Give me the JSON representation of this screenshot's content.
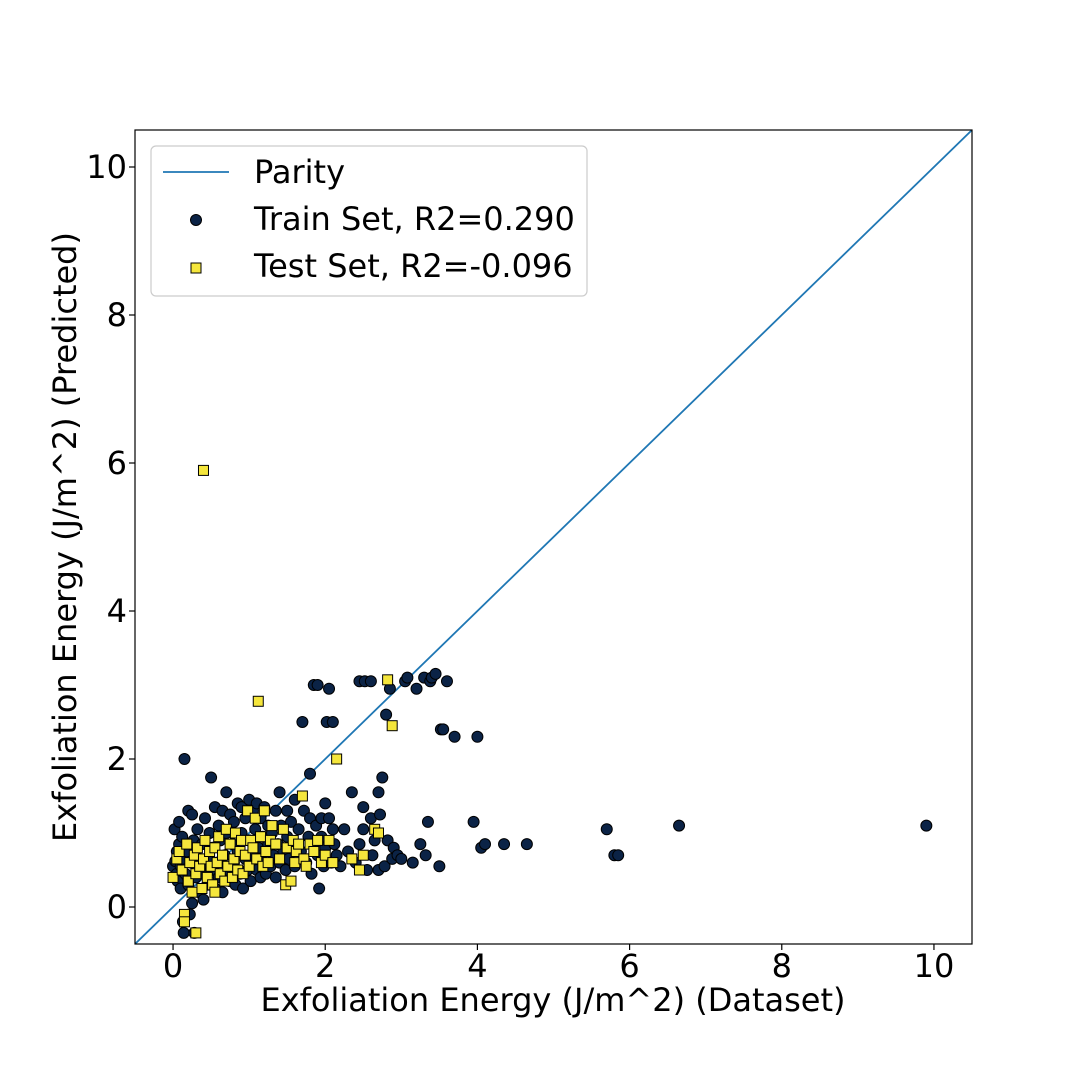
{
  "chart_data": {
    "type": "scatter",
    "xlabel": "Exfoliation Energy (J/m^2) (Dataset)",
    "ylabel": "Exfoliation Energy (J/m^2) (Predicted)",
    "xlim": [
      -0.5,
      10.5
    ],
    "ylim": [
      -0.5,
      10.5
    ],
    "xticks": [
      0,
      2,
      4,
      6,
      8,
      10
    ],
    "yticks": [
      0,
      2,
      4,
      6,
      8,
      10
    ],
    "tick_labels_x": [
      "0",
      "2",
      "4",
      "6",
      "8",
      "10"
    ],
    "tick_labels_y": [
      "0",
      "2",
      "4",
      "6",
      "8",
      "10"
    ],
    "grid": false,
    "legend_position": "top-left",
    "parity": {
      "name": "Parity",
      "color": "#1f77b4",
      "points": [
        [
          -0.5,
          -0.5
        ],
        [
          10.5,
          10.5
        ]
      ]
    },
    "series": [
      {
        "name": "Train Set, R2=0.290",
        "marker": "circle",
        "color": "#0b2346",
        "points": [
          [
            0.0,
            0.55
          ],
          [
            0.02,
            1.05
          ],
          [
            0.03,
            0.62
          ],
          [
            0.05,
            0.75
          ],
          [
            0.05,
            0.45
          ],
          [
            0.06,
            0.35
          ],
          [
            0.08,
            0.85
          ],
          [
            0.08,
            1.15
          ],
          [
            0.1,
            0.55
          ],
          [
            0.1,
            0.25
          ],
          [
            0.12,
            0.95
          ],
          [
            0.12,
            0.65
          ],
          [
            0.13,
            -0.2
          ],
          [
            0.14,
            -0.35
          ],
          [
            0.15,
            2.0
          ],
          [
            0.16,
            0.45
          ],
          [
            0.18,
            0.75
          ],
          [
            0.2,
            1.3
          ],
          [
            0.2,
            0.3
          ],
          [
            0.22,
            -0.1
          ],
          [
            0.24,
            0.6
          ],
          [
            0.25,
            1.25
          ],
          [
            0.25,
            0.05
          ],
          [
            0.27,
            0.9
          ],
          [
            0.28,
            -0.35
          ],
          [
            0.3,
            0.4
          ],
          [
            0.3,
            0.7
          ],
          [
            0.32,
            1.05
          ],
          [
            0.35,
            0.2
          ],
          [
            0.36,
            0.55
          ],
          [
            0.38,
            0.85
          ],
          [
            0.4,
            0.1
          ],
          [
            0.4,
            0.45
          ],
          [
            0.42,
            1.2
          ],
          [
            0.45,
            0.3
          ],
          [
            0.45,
            0.65
          ],
          [
            0.48,
            1.0
          ],
          [
            0.5,
            1.75
          ],
          [
            0.5,
            0.5
          ],
          [
            0.52,
            0.8
          ],
          [
            0.55,
            1.35
          ],
          [
            0.55,
            0.25
          ],
          [
            0.58,
            0.6
          ],
          [
            0.6,
            1.1
          ],
          [
            0.6,
            0.4
          ],
          [
            0.62,
            0.9
          ],
          [
            0.65,
            1.3
          ],
          [
            0.65,
            0.2
          ],
          [
            0.68,
            0.7
          ],
          [
            0.7,
            1.0
          ],
          [
            0.7,
            1.55
          ],
          [
            0.72,
            0.5
          ],
          [
            0.75,
            1.25
          ],
          [
            0.75,
            0.35
          ],
          [
            0.78,
            0.85
          ],
          [
            0.8,
            0.6
          ],
          [
            0.8,
            1.15
          ],
          [
            0.82,
            0.3
          ],
          [
            0.85,
            1.4
          ],
          [
            0.85,
            0.75
          ],
          [
            0.88,
            0.45
          ],
          [
            0.9,
            1.0
          ],
          [
            0.9,
            1.35
          ],
          [
            0.92,
            0.25
          ],
          [
            0.95,
            0.65
          ],
          [
            0.95,
            1.2
          ],
          [
            0.98,
            0.5
          ],
          [
            1.0,
            0.9
          ],
          [
            1.0,
            1.45
          ],
          [
            1.02,
            0.35
          ],
          [
            1.05,
            0.7
          ],
          [
            1.05,
            1.3
          ],
          [
            1.08,
            1.05
          ],
          [
            1.1,
            0.5
          ],
          [
            1.1,
            1.4
          ],
          [
            1.12,
            0.8
          ],
          [
            1.15,
            1.2
          ],
          [
            1.15,
            0.4
          ],
          [
            1.18,
            0.95
          ],
          [
            1.2,
            0.6
          ],
          [
            1.2,
            1.35
          ],
          [
            1.22,
            0.45
          ],
          [
            1.25,
            0.85
          ],
          [
            1.25,
            1.1
          ],
          [
            1.28,
            0.55
          ],
          [
            1.3,
            1.0
          ],
          [
            1.32,
            0.7
          ],
          [
            1.35,
            0.4
          ],
          [
            1.35,
            1.3
          ],
          [
            1.38,
            0.85
          ],
          [
            1.4,
            1.55
          ],
          [
            1.4,
            0.6
          ],
          [
            1.42,
            1.1
          ],
          [
            1.45,
            0.75
          ],
          [
            1.48,
            0.5
          ],
          [
            1.5,
            0.95
          ],
          [
            1.5,
            1.3
          ],
          [
            1.52,
            0.65
          ],
          [
            1.55,
            1.15
          ],
          [
            1.58,
            0.85
          ],
          [
            1.6,
            1.45
          ],
          [
            1.6,
            0.55
          ],
          [
            1.65,
            1.05
          ],
          [
            1.68,
            0.75
          ],
          [
            1.7,
            2.5
          ],
          [
            1.72,
            1.3
          ],
          [
            1.75,
            0.6
          ],
          [
            1.78,
            0.95
          ],
          [
            1.8,
            1.8
          ],
          [
            1.8,
            1.2
          ],
          [
            1.82,
            0.45
          ],
          [
            1.85,
            3.0
          ],
          [
            1.85,
            0.85
          ],
          [
            1.88,
            1.1
          ],
          [
            1.9,
            3.0
          ],
          [
            1.9,
            0.7
          ],
          [
            1.92,
            0.25
          ],
          [
            1.95,
            1.2
          ],
          [
            1.95,
            0.95
          ],
          [
            1.98,
            0.55
          ],
          [
            2.0,
            1.4
          ],
          [
            2.0,
            0.8
          ],
          [
            2.02,
            2.5
          ],
          [
            2.05,
            2.95
          ],
          [
            2.05,
            1.2
          ],
          [
            2.08,
            0.6
          ],
          [
            2.1,
            2.5
          ],
          [
            2.1,
            1.05
          ],
          [
            2.12,
            0.85
          ],
          [
            2.15,
            0.7
          ],
          [
            2.2,
            0.55
          ],
          [
            2.25,
            1.05
          ],
          [
            2.3,
            0.75
          ],
          [
            2.35,
            1.55
          ],
          [
            2.4,
            0.6
          ],
          [
            2.45,
            0.85
          ],
          [
            2.45,
            3.05
          ],
          [
            2.5,
            1.35
          ],
          [
            2.5,
            1.05
          ],
          [
            2.52,
            3.05
          ],
          [
            2.55,
            0.5
          ],
          [
            2.6,
            3.05
          ],
          [
            2.6,
            1.2
          ],
          [
            2.62,
            0.7
          ],
          [
            2.65,
            0.9
          ],
          [
            2.7,
            1.55
          ],
          [
            2.7,
            0.5
          ],
          [
            2.72,
            1.25
          ],
          [
            2.75,
            1.75
          ],
          [
            2.78,
            0.55
          ],
          [
            2.8,
            2.6
          ],
          [
            2.82,
            0.9
          ],
          [
            2.85,
            2.95
          ],
          [
            2.88,
            0.65
          ],
          [
            2.9,
            0.8
          ],
          [
            2.95,
            0.7
          ],
          [
            3.0,
            0.65
          ],
          [
            3.05,
            3.05
          ],
          [
            3.08,
            3.1
          ],
          [
            3.15,
            0.6
          ],
          [
            3.2,
            2.95
          ],
          [
            3.25,
            0.85
          ],
          [
            3.3,
            3.1
          ],
          [
            3.32,
            0.7
          ],
          [
            3.35,
            1.15
          ],
          [
            3.38,
            3.05
          ],
          [
            3.4,
            3.1
          ],
          [
            3.45,
            3.15
          ],
          [
            3.5,
            0.55
          ],
          [
            3.52,
            2.4
          ],
          [
            3.55,
            2.4
          ],
          [
            3.6,
            3.05
          ],
          [
            3.7,
            2.3
          ],
          [
            3.95,
            1.15
          ],
          [
            4.0,
            2.3
          ],
          [
            4.05,
            0.8
          ],
          [
            4.1,
            0.85
          ],
          [
            4.35,
            0.85
          ],
          [
            4.65,
            0.85
          ],
          [
            5.7,
            1.05
          ],
          [
            5.8,
            0.7
          ],
          [
            5.85,
            0.7
          ],
          [
            6.65,
            1.1
          ],
          [
            9.9,
            1.1
          ]
        ]
      },
      {
        "name": "Test Set, R2=-0.096",
        "marker": "square",
        "color": "#f5e63c",
        "points": [
          [
            0.0,
            0.4
          ],
          [
            0.05,
            0.65
          ],
          [
            0.08,
            0.75
          ],
          [
            0.12,
            0.5
          ],
          [
            0.15,
            -0.1
          ],
          [
            0.15,
            -0.2
          ],
          [
            0.18,
            0.85
          ],
          [
            0.2,
            0.35
          ],
          [
            0.22,
            0.6
          ],
          [
            0.25,
            0.2
          ],
          [
            0.28,
            0.7
          ],
          [
            0.3,
            -0.35
          ],
          [
            0.3,
            0.45
          ],
          [
            0.32,
            0.8
          ],
          [
            0.35,
            0.55
          ],
          [
            0.38,
            0.25
          ],
          [
            0.4,
            5.9
          ],
          [
            0.4,
            0.65
          ],
          [
            0.42,
            0.9
          ],
          [
            0.45,
            0.4
          ],
          [
            0.48,
            0.75
          ],
          [
            0.5,
            0.55
          ],
          [
            0.52,
            0.3
          ],
          [
            0.55,
            0.8
          ],
          [
            0.55,
            0.2
          ],
          [
            0.58,
            0.6
          ],
          [
            0.6,
            0.95
          ],
          [
            0.62,
            0.45
          ],
          [
            0.65,
            0.7
          ],
          [
            0.68,
            0.35
          ],
          [
            0.7,
            1.05
          ],
          [
            0.72,
            0.55
          ],
          [
            0.75,
            0.85
          ],
          [
            0.78,
            0.4
          ],
          [
            0.8,
            0.65
          ],
          [
            0.82,
            1.0
          ],
          [
            0.85,
            0.5
          ],
          [
            0.88,
            0.75
          ],
          [
            0.9,
            0.9
          ],
          [
            0.92,
            0.45
          ],
          [
            0.95,
            0.7
          ],
          [
            0.98,
            1.3
          ],
          [
            1.0,
            0.55
          ],
          [
            1.02,
            0.9
          ],
          [
            1.05,
            0.8
          ],
          [
            1.08,
            1.2
          ],
          [
            1.1,
            0.65
          ],
          [
            1.12,
            2.78
          ],
          [
            1.15,
            0.95
          ],
          [
            1.18,
            0.55
          ],
          [
            1.2,
            1.3
          ],
          [
            1.22,
            0.75
          ],
          [
            1.25,
            0.6
          ],
          [
            1.28,
            0.9
          ],
          [
            1.3,
            1.1
          ],
          [
            1.35,
            0.85
          ],
          [
            1.4,
            0.65
          ],
          [
            1.45,
            1.05
          ],
          [
            1.48,
            0.3
          ],
          [
            1.5,
            0.8
          ],
          [
            1.55,
            0.35
          ],
          [
            1.58,
            0.9
          ],
          [
            1.6,
            0.6
          ],
          [
            1.62,
            0.75
          ],
          [
            1.65,
            0.85
          ],
          [
            1.7,
            1.5
          ],
          [
            1.72,
            0.65
          ],
          [
            1.75,
            0.55
          ],
          [
            1.8,
            0.85
          ],
          [
            1.85,
            0.75
          ],
          [
            1.9,
            0.9
          ],
          [
            1.95,
            0.6
          ],
          [
            2.0,
            0.7
          ],
          [
            2.05,
            0.9
          ],
          [
            2.1,
            0.6
          ],
          [
            2.15,
            2.0
          ],
          [
            2.35,
            0.65
          ],
          [
            2.45,
            0.5
          ],
          [
            2.5,
            0.7
          ],
          [
            2.65,
            1.05
          ],
          [
            2.7,
            1.0
          ],
          [
            2.82,
            3.07
          ],
          [
            2.88,
            2.45
          ]
        ]
      }
    ]
  }
}
